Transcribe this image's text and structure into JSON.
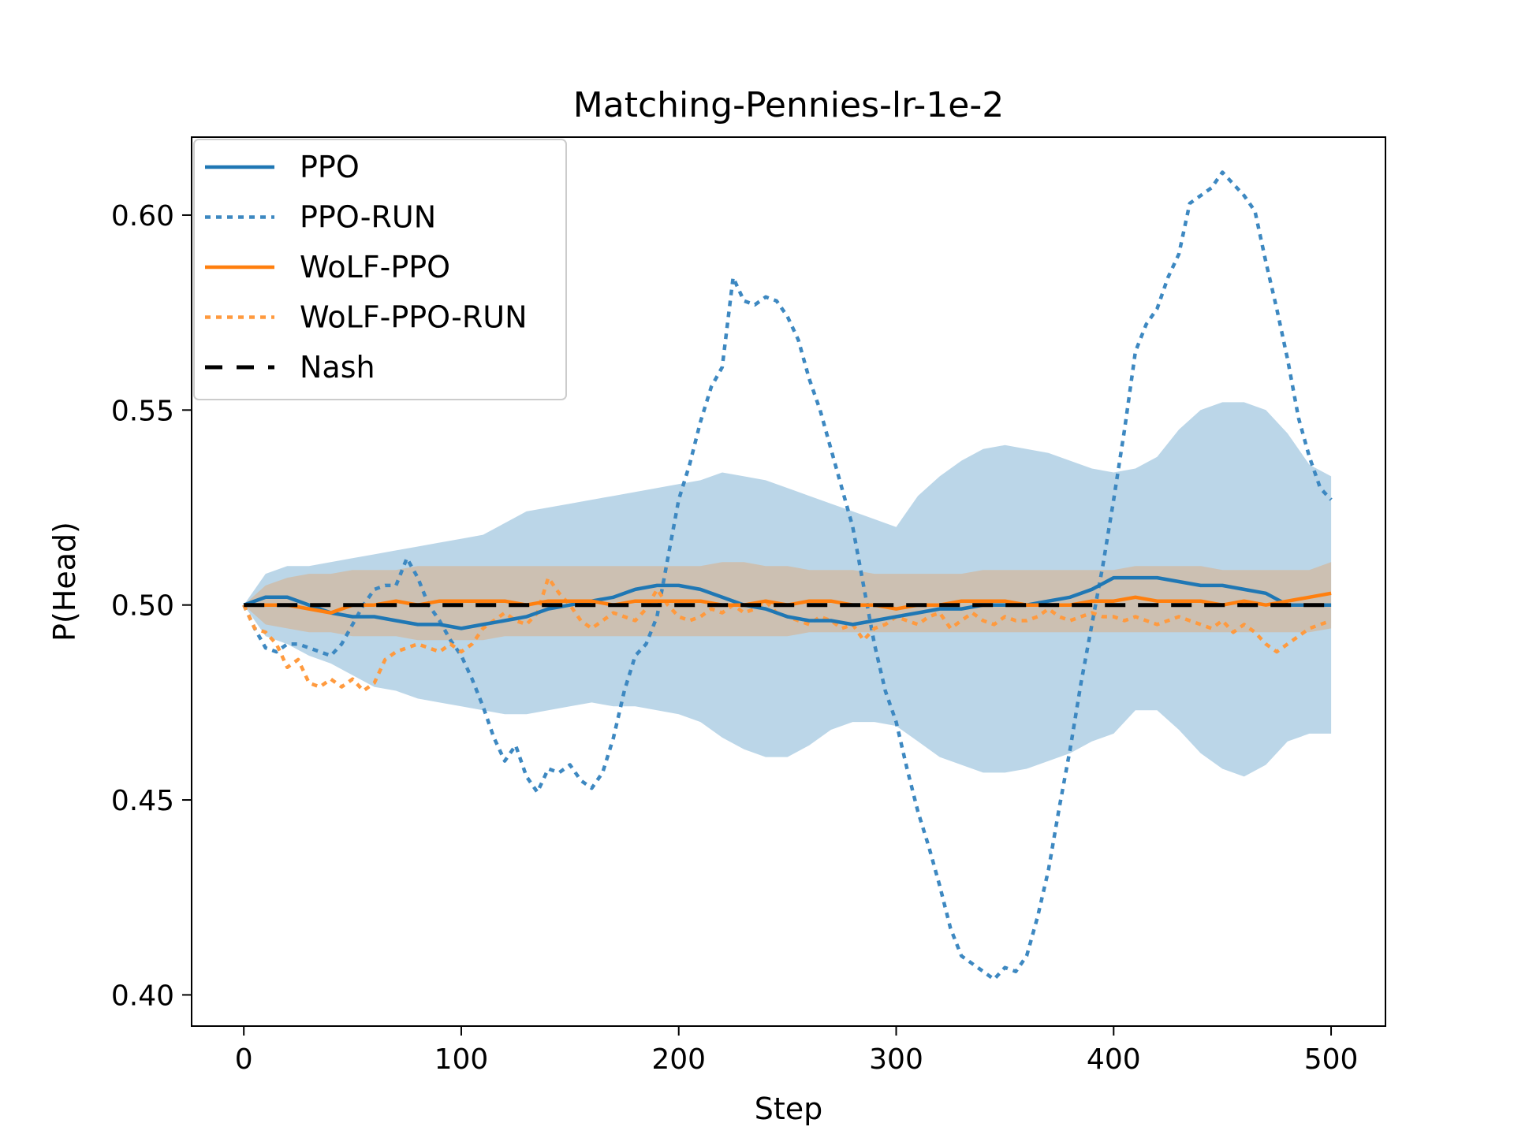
{
  "chart_data": {
    "type": "line",
    "title": "Matching-Pennies-lr-1e-2",
    "xlabel": "Step",
    "ylabel": "P(Head)",
    "xlim": [
      -24,
      525
    ],
    "ylim": [
      0.392,
      0.62
    ],
    "xticks": [
      0,
      100,
      200,
      300,
      400,
      500
    ],
    "xtick_labels": [
      "0",
      "100",
      "200",
      "300",
      "400",
      "500"
    ],
    "yticks": [
      0.4,
      0.45,
      0.5,
      0.55,
      0.6
    ],
    "ytick_labels": [
      "0.40",
      "0.45",
      "0.50",
      "0.55",
      "0.60"
    ],
    "grid": false,
    "legend_position": "top-left",
    "colors": {
      "blue": "#1f77b4",
      "blue_run": "#3d88c1",
      "orange": "#ff7f0e",
      "orange_run": "#ff9a3e",
      "nash": "#000000",
      "band_blue": "#1f77b4",
      "band_orange": "#ff7f0e"
    },
    "series": [
      {
        "name": "PPO",
        "style": "solid",
        "color": "#1f77b4",
        "x": [
          0,
          10,
          20,
          30,
          40,
          50,
          60,
          70,
          80,
          90,
          100,
          110,
          120,
          130,
          140,
          150,
          160,
          170,
          180,
          190,
          200,
          210,
          220,
          230,
          240,
          250,
          260,
          270,
          280,
          290,
          300,
          310,
          320,
          330,
          340,
          350,
          360,
          370,
          380,
          390,
          400,
          410,
          420,
          430,
          440,
          450,
          460,
          470,
          480,
          490,
          500
        ],
        "y": [
          0.5,
          0.502,
          0.502,
          0.5,
          0.498,
          0.497,
          0.497,
          0.496,
          0.495,
          0.495,
          0.494,
          0.495,
          0.496,
          0.497,
          0.499,
          0.5,
          0.501,
          0.502,
          0.504,
          0.505,
          0.505,
          0.504,
          0.502,
          0.5,
          0.499,
          0.497,
          0.496,
          0.496,
          0.495,
          0.496,
          0.497,
          0.498,
          0.499,
          0.499,
          0.5,
          0.5,
          0.5,
          0.501,
          0.502,
          0.504,
          0.507,
          0.507,
          0.507,
          0.506,
          0.505,
          0.505,
          0.504,
          0.503,
          0.5,
          0.5,
          0.5
        ]
      },
      {
        "name": "PPO-RUN",
        "style": "dotted",
        "color": "#3d88c1",
        "x": [
          0,
          5,
          10,
          15,
          20,
          25,
          30,
          35,
          40,
          45,
          50,
          55,
          60,
          65,
          70,
          75,
          80,
          85,
          90,
          95,
          100,
          105,
          110,
          115,
          120,
          125,
          130,
          135,
          140,
          145,
          150,
          155,
          160,
          165,
          170,
          175,
          180,
          185,
          190,
          195,
          200,
          205,
          210,
          215,
          220,
          225,
          230,
          235,
          240,
          245,
          250,
          255,
          260,
          265,
          270,
          275,
          280,
          285,
          290,
          295,
          300,
          305,
          310,
          315,
          320,
          325,
          330,
          335,
          340,
          345,
          350,
          355,
          360,
          365,
          370,
          375,
          380,
          385,
          390,
          395,
          400,
          405,
          410,
          415,
          420,
          425,
          430,
          435,
          440,
          445,
          450,
          455,
          460,
          465,
          470,
          475,
          480,
          485,
          490,
          495,
          500
        ],
        "y": [
          0.5,
          0.494,
          0.489,
          0.488,
          0.49,
          0.49,
          0.489,
          0.488,
          0.487,
          0.49,
          0.495,
          0.5,
          0.504,
          0.505,
          0.505,
          0.512,
          0.507,
          0.5,
          0.496,
          0.491,
          0.487,
          0.481,
          0.474,
          0.466,
          0.46,
          0.464,
          0.456,
          0.452,
          0.458,
          0.457,
          0.459,
          0.455,
          0.453,
          0.457,
          0.466,
          0.478,
          0.487,
          0.49,
          0.497,
          0.512,
          0.527,
          0.536,
          0.547,
          0.556,
          0.561,
          0.584,
          0.578,
          0.577,
          0.579,
          0.578,
          0.574,
          0.568,
          0.558,
          0.55,
          0.54,
          0.53,
          0.52,
          0.505,
          0.49,
          0.478,
          0.47,
          0.458,
          0.447,
          0.438,
          0.428,
          0.417,
          0.41,
          0.408,
          0.406,
          0.404,
          0.407,
          0.406,
          0.41,
          0.42,
          0.432,
          0.448,
          0.463,
          0.48,
          0.495,
          0.51,
          0.527,
          0.545,
          0.565,
          0.572,
          0.576,
          0.584,
          0.59,
          0.603,
          0.605,
          0.607,
          0.611,
          0.608,
          0.605,
          0.601,
          0.588,
          0.576,
          0.563,
          0.548,
          0.538,
          0.53,
          0.527
        ]
      },
      {
        "name": "WoLF-PPO",
        "style": "solid",
        "color": "#ff7f0e",
        "x": [
          0,
          10,
          20,
          30,
          40,
          50,
          60,
          70,
          80,
          90,
          100,
          110,
          120,
          130,
          140,
          150,
          160,
          170,
          180,
          190,
          200,
          210,
          220,
          230,
          240,
          250,
          260,
          270,
          280,
          290,
          300,
          310,
          320,
          330,
          340,
          350,
          360,
          370,
          380,
          390,
          400,
          410,
          420,
          430,
          440,
          450,
          460,
          470,
          480,
          490,
          500
        ],
        "y": [
          0.5,
          0.5,
          0.5,
          0.499,
          0.498,
          0.5,
          0.5,
          0.501,
          0.5,
          0.501,
          0.501,
          0.501,
          0.501,
          0.5,
          0.501,
          0.501,
          0.501,
          0.5,
          0.501,
          0.501,
          0.501,
          0.501,
          0.5,
          0.5,
          0.501,
          0.5,
          0.501,
          0.501,
          0.5,
          0.5,
          0.499,
          0.5,
          0.5,
          0.501,
          0.501,
          0.501,
          0.5,
          0.5,
          0.5,
          0.501,
          0.501,
          0.502,
          0.501,
          0.501,
          0.501,
          0.5,
          0.501,
          0.5,
          0.501,
          0.502,
          0.503
        ]
      },
      {
        "name": "WoLF-PPO-RUN",
        "style": "dotted",
        "color": "#ff9a3e",
        "x": [
          0,
          5,
          10,
          15,
          20,
          25,
          30,
          35,
          40,
          45,
          50,
          55,
          60,
          65,
          70,
          75,
          80,
          85,
          90,
          95,
          100,
          105,
          110,
          115,
          120,
          125,
          130,
          135,
          140,
          145,
          150,
          155,
          160,
          165,
          170,
          175,
          180,
          185,
          190,
          195,
          200,
          205,
          210,
          215,
          220,
          225,
          230,
          235,
          240,
          245,
          250,
          255,
          260,
          265,
          270,
          275,
          280,
          285,
          290,
          295,
          300,
          305,
          310,
          315,
          320,
          325,
          330,
          335,
          340,
          345,
          350,
          355,
          360,
          365,
          370,
          375,
          380,
          385,
          390,
          395,
          400,
          405,
          410,
          415,
          420,
          425,
          430,
          435,
          440,
          445,
          450,
          455,
          460,
          465,
          470,
          475,
          480,
          485,
          490,
          495,
          500
        ],
        "y": [
          0.5,
          0.494,
          0.493,
          0.49,
          0.484,
          0.486,
          0.48,
          0.479,
          0.481,
          0.479,
          0.481,
          0.478,
          0.48,
          0.486,
          0.488,
          0.489,
          0.49,
          0.489,
          0.488,
          0.49,
          0.488,
          0.49,
          0.494,
          0.496,
          0.498,
          0.496,
          0.495,
          0.498,
          0.507,
          0.503,
          0.5,
          0.496,
          0.494,
          0.496,
          0.498,
          0.497,
          0.496,
          0.499,
          0.504,
          0.5,
          0.497,
          0.496,
          0.497,
          0.499,
          0.498,
          0.5,
          0.498,
          0.499,
          0.501,
          0.498,
          0.497,
          0.496,
          0.495,
          0.497,
          0.496,
          0.494,
          0.495,
          0.491,
          0.494,
          0.495,
          0.497,
          0.496,
          0.495,
          0.497,
          0.498,
          0.494,
          0.496,
          0.498,
          0.496,
          0.495,
          0.497,
          0.496,
          0.496,
          0.497,
          0.499,
          0.497,
          0.496,
          0.497,
          0.498,
          0.497,
          0.497,
          0.496,
          0.497,
          0.496,
          0.495,
          0.496,
          0.497,
          0.496,
          0.495,
          0.494,
          0.496,
          0.493,
          0.495,
          0.493,
          0.49,
          0.488,
          0.49,
          0.492,
          0.494,
          0.495,
          0.496
        ]
      },
      {
        "name": "Nash",
        "style": "dashed",
        "color": "#000000",
        "x": [
          0,
          500
        ],
        "y": [
          0.5,
          0.5
        ]
      }
    ],
    "bands": [
      {
        "series": "PPO",
        "color": "#1f77b4",
        "opacity": 0.3,
        "x": [
          0,
          10,
          20,
          30,
          40,
          50,
          60,
          70,
          80,
          90,
          100,
          110,
          120,
          130,
          140,
          150,
          160,
          170,
          180,
          190,
          200,
          210,
          220,
          230,
          240,
          250,
          260,
          270,
          280,
          290,
          300,
          310,
          320,
          330,
          340,
          350,
          360,
          370,
          380,
          390,
          400,
          410,
          420,
          430,
          440,
          450,
          460,
          470,
          480,
          490,
          500
        ],
        "upper": [
          0.5,
          0.508,
          0.51,
          0.51,
          0.511,
          0.512,
          0.513,
          0.514,
          0.515,
          0.516,
          0.517,
          0.518,
          0.521,
          0.524,
          0.525,
          0.526,
          0.527,
          0.528,
          0.529,
          0.53,
          0.531,
          0.532,
          0.534,
          0.533,
          0.532,
          0.53,
          0.528,
          0.526,
          0.524,
          0.522,
          0.52,
          0.528,
          0.533,
          0.537,
          0.54,
          0.541,
          0.54,
          0.539,
          0.537,
          0.535,
          0.534,
          0.535,
          0.538,
          0.545,
          0.55,
          0.552,
          0.552,
          0.55,
          0.544,
          0.536,
          0.533
        ],
        "lower": [
          0.5,
          0.492,
          0.49,
          0.487,
          0.485,
          0.482,
          0.479,
          0.478,
          0.476,
          0.475,
          0.474,
          0.473,
          0.472,
          0.472,
          0.473,
          0.474,
          0.475,
          0.474,
          0.474,
          0.473,
          0.472,
          0.47,
          0.466,
          0.463,
          0.461,
          0.461,
          0.464,
          0.468,
          0.47,
          0.47,
          0.469,
          0.465,
          0.461,
          0.459,
          0.457,
          0.457,
          0.458,
          0.46,
          0.462,
          0.465,
          0.467,
          0.473,
          0.473,
          0.468,
          0.462,
          0.458,
          0.456,
          0.459,
          0.465,
          0.467,
          0.467
        ]
      },
      {
        "series": "WoLF-PPO",
        "color": "#ff7f0e",
        "opacity": 0.25,
        "x": [
          0,
          10,
          20,
          30,
          40,
          50,
          60,
          70,
          80,
          90,
          100,
          110,
          120,
          130,
          140,
          150,
          160,
          170,
          180,
          190,
          200,
          210,
          220,
          230,
          240,
          250,
          260,
          270,
          280,
          290,
          300,
          310,
          320,
          330,
          340,
          350,
          360,
          370,
          380,
          390,
          400,
          410,
          420,
          430,
          440,
          450,
          460,
          470,
          480,
          490,
          500
        ],
        "upper": [
          0.5,
          0.505,
          0.507,
          0.508,
          0.508,
          0.509,
          0.509,
          0.509,
          0.51,
          0.51,
          0.51,
          0.51,
          0.51,
          0.51,
          0.51,
          0.51,
          0.51,
          0.51,
          0.51,
          0.51,
          0.51,
          0.51,
          0.511,
          0.511,
          0.51,
          0.51,
          0.509,
          0.509,
          0.509,
          0.508,
          0.508,
          0.508,
          0.508,
          0.508,
          0.509,
          0.509,
          0.509,
          0.509,
          0.509,
          0.509,
          0.509,
          0.51,
          0.51,
          0.51,
          0.51,
          0.509,
          0.509,
          0.509,
          0.509,
          0.509,
          0.511
        ],
        "lower": [
          0.5,
          0.495,
          0.494,
          0.493,
          0.493,
          0.492,
          0.492,
          0.492,
          0.491,
          0.491,
          0.491,
          0.491,
          0.492,
          0.492,
          0.492,
          0.492,
          0.492,
          0.492,
          0.492,
          0.492,
          0.492,
          0.492,
          0.492,
          0.492,
          0.492,
          0.492,
          0.493,
          0.493,
          0.493,
          0.493,
          0.493,
          0.493,
          0.493,
          0.493,
          0.493,
          0.493,
          0.493,
          0.493,
          0.493,
          0.493,
          0.493,
          0.493,
          0.493,
          0.493,
          0.493,
          0.493,
          0.493,
          0.493,
          0.493,
          0.493,
          0.494
        ]
      }
    ]
  }
}
